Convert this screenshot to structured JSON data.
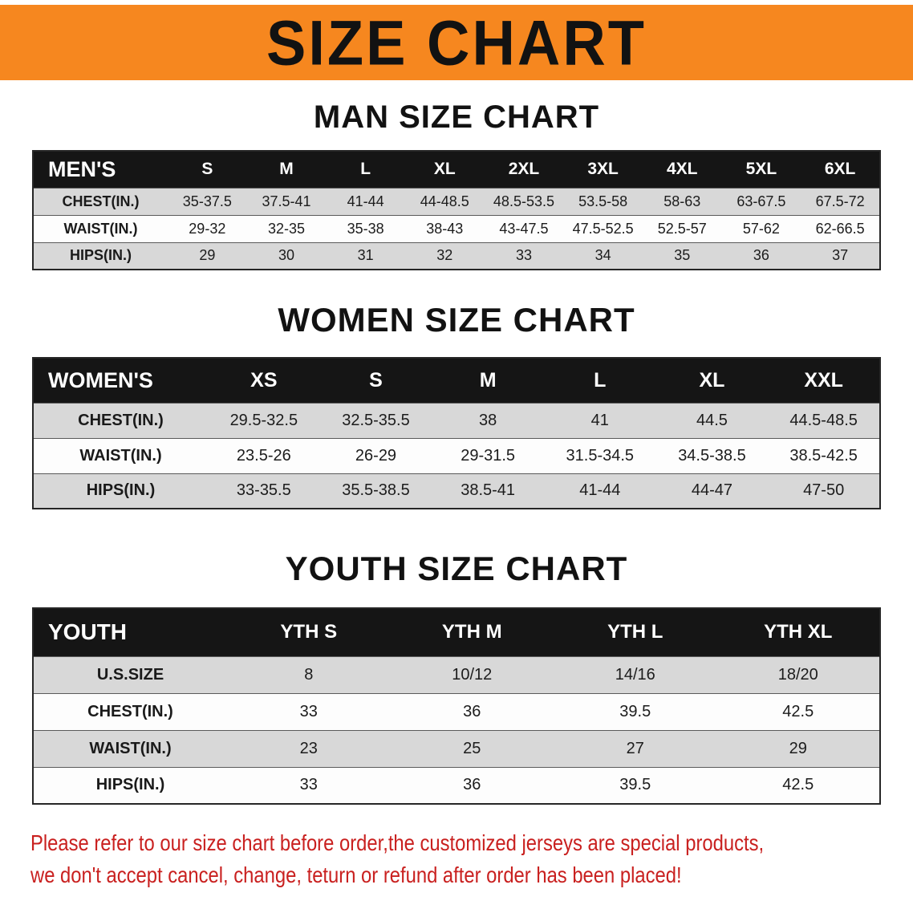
{
  "banner": {
    "title": "SIZE CHART",
    "background_color": "#f6871f",
    "text_color": "#121212"
  },
  "sections": {
    "men": {
      "heading": "MAN SIZE CHART",
      "table": {
        "header": [
          "MEN'S",
          "S",
          "M",
          "L",
          "XL",
          "2XL",
          "3XL",
          "4XL",
          "5XL",
          "6XL"
        ],
        "rows": [
          [
            "CHEST(IN.)",
            "35-37.5",
            "37.5-41",
            "41-44",
            "44-48.5",
            "48.5-53.5",
            "53.5-58",
            "58-63",
            "63-67.5",
            "67.5-72"
          ],
          [
            "WAIST(IN.)",
            "29-32",
            "32-35",
            "35-38",
            "38-43",
            "43-47.5",
            "47.5-52.5",
            "52.5-57",
            "57-62",
            "62-66.5"
          ],
          [
            "HIPS(IN.)",
            "29",
            "30",
            "31",
            "32",
            "33",
            "34",
            "35",
            "36",
            "37"
          ]
        ]
      }
    },
    "women": {
      "heading": "WOMEN SIZE CHART",
      "table": {
        "header": [
          "WOMEN'S",
          "XS",
          "S",
          "M",
          "L",
          "XL",
          "XXL"
        ],
        "rows": [
          [
            "CHEST(IN.)",
            "29.5-32.5",
            "32.5-35.5",
            "38",
            "41",
            "44.5",
            "44.5-48.5"
          ],
          [
            "WAIST(IN.)",
            "23.5-26",
            "26-29",
            "29-31.5",
            "31.5-34.5",
            "34.5-38.5",
            "38.5-42.5"
          ],
          [
            "HIPS(IN.)",
            "33-35.5",
            "35.5-38.5",
            "38.5-41",
            "41-44",
            "44-47",
            "47-50"
          ]
        ]
      }
    },
    "youth": {
      "heading": "YOUTH SIZE CHART",
      "table": {
        "header": [
          "YOUTH",
          "YTH S",
          "YTH M",
          "YTH L",
          "YTH XL"
        ],
        "rows": [
          [
            "U.S.SIZE",
            "8",
            "10/12",
            "14/16",
            "18/20"
          ],
          [
            "CHEST(IN.)",
            "33",
            "36",
            "39.5",
            "42.5"
          ],
          [
            "WAIST(IN.)",
            "23",
            "25",
            "27",
            "29"
          ],
          [
            "HIPS(IN.)",
            "33",
            "36",
            "39.5",
            "42.5"
          ]
        ]
      }
    }
  },
  "disclaimer": {
    "line1": "Please refer to our size chart before order,the customized jerseys are special products,",
    "line2": "we don't accept cancel, change, teturn or refund after order has been placed!",
    "text_color": "#c9201f"
  },
  "colors": {
    "stripe_gray": "#d8d8d8",
    "table_header_black": "#151515"
  }
}
